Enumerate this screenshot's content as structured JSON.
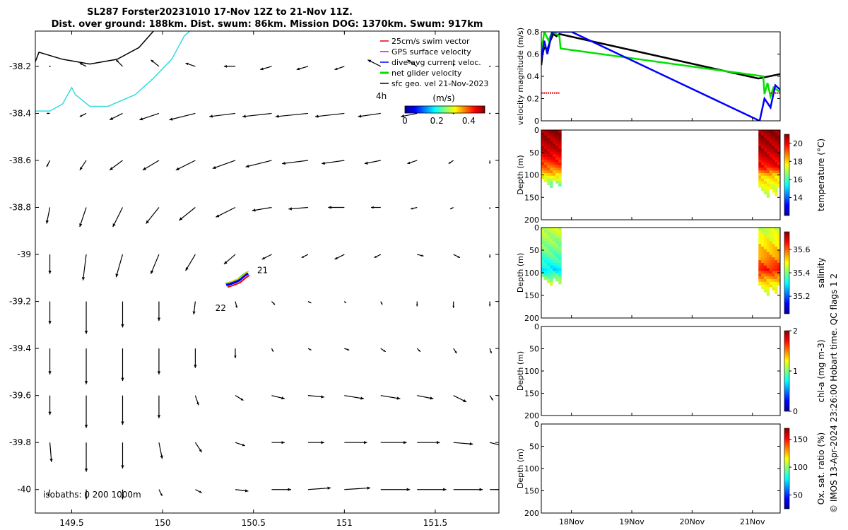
{
  "title": {
    "line1": "SL287 Forster20231010 17-Nov 12Z to 21-Nov 11Z.",
    "line2": "Dist. over ground: 188km. Dist. swum: 86km. Mission DOG: 1370km. Swum: 917km"
  },
  "credit": "© IMOS 13-Apr-2024 23:26:00 Hobart time. QC flags 1  2",
  "chart_data": [
    {
      "type": "vector-map",
      "xlim": [
        149.3,
        151.85
      ],
      "ylim": [
        -40.1,
        -38.05
      ],
      "x_ticks": [
        149.5,
        150,
        150.5,
        151,
        151.5
      ],
      "x_tick_labels": [
        "149.5",
        "150",
        "150.5",
        "151",
        "151.5"
      ],
      "y_ticks": [
        -38.2,
        -38.4,
        -38.6,
        -38.8,
        -39,
        -39.2,
        -39.4,
        -39.6,
        -39.8,
        -40
      ],
      "y_tick_labels": [
        "-38.2",
        "-38.4",
        "-38.6",
        "-38.8",
        "-39",
        "-39.2",
        "-39.4",
        "-39.6",
        "-39.8",
        "-40"
      ],
      "legend": {
        "position": "top-right",
        "items": [
          {
            "label": "25cm/s swim vector",
            "color": "#e00000"
          },
          {
            "label": "GPS surface velocity",
            "color": "#e000e0"
          },
          {
            "label": "dive-avg current veloc.",
            "color": "#0000ff"
          },
          {
            "label": "net glider velocity",
            "color": "#00e000"
          },
          {
            "label": "sfc geo. vel 21-Nov-2023",
            "color": "#000000"
          }
        ],
        "extra_label": "4h"
      },
      "colorbar": {
        "label": "(m/s)",
        "ticks": [
          "0",
          "0.2",
          "0.4"
        ],
        "range": [
          0,
          0.5
        ]
      },
      "isobath_label": "isobaths: 0   200  1000m",
      "track_labels": [
        {
          "text": "21",
          "lon": 150.52,
          "lat": -39.08
        },
        {
          "text": "22",
          "lon": 150.29,
          "lat": -39.24
        }
      ],
      "track": [
        [
          150.35,
          -39.13
        ],
        [
          150.39,
          -39.12
        ],
        [
          150.42,
          -39.11
        ],
        [
          150.45,
          -39.09
        ],
        [
          150.47,
          -39.08
        ]
      ],
      "coast_black": [
        [
          149.3,
          -38.18
        ],
        [
          149.32,
          -38.14
        ],
        [
          149.45,
          -38.17
        ],
        [
          149.6,
          -38.19
        ],
        [
          149.75,
          -38.17
        ],
        [
          149.87,
          -38.12
        ],
        [
          149.95,
          -38.05
        ]
      ],
      "isobath_200": [
        [
          149.3,
          -38.39
        ],
        [
          149.38,
          -38.39
        ],
        [
          149.45,
          -38.36
        ],
        [
          149.5,
          -38.29
        ],
        [
          149.52,
          -38.32
        ],
        [
          149.6,
          -38.37
        ],
        [
          149.7,
          -38.37
        ],
        [
          149.85,
          -38.32
        ],
        [
          149.95,
          -38.25
        ],
        [
          150.05,
          -38.17
        ],
        [
          150.12,
          -38.07
        ],
        [
          150.15,
          -38.05
        ]
      ],
      "vector_lons": [
        149.38,
        149.58,
        149.78,
        149.98,
        150.18,
        150.4,
        150.6,
        150.8,
        151.0,
        151.2,
        151.4,
        151.6,
        151.8
      ],
      "vector_lats": [
        -38.2,
        -38.4,
        -38.6,
        -38.8,
        -39.0,
        -39.2,
        -39.4,
        -39.6,
        -39.8,
        -40.0
      ],
      "vectors_u": [
        [
          0.0,
          -0.04,
          -0.04,
          -0.05,
          -0.06,
          -0.07,
          -0.07,
          -0.07,
          -0.06,
          -0.08,
          -0.06,
          0.0,
          0.0
        ],
        [
          -0.02,
          -0.04,
          -0.08,
          -0.12,
          -0.16,
          -0.16,
          -0.18,
          -0.2,
          -0.18,
          -0.14,
          -0.1,
          0.0,
          0.0
        ],
        [
          -0.02,
          -0.04,
          -0.08,
          -0.1,
          -0.12,
          -0.14,
          -0.16,
          -0.16,
          -0.14,
          -0.1,
          -0.06,
          -0.03,
          0.0
        ],
        [
          -0.02,
          -0.04,
          -0.06,
          -0.08,
          -0.1,
          -0.12,
          -0.12,
          -0.12,
          -0.1,
          -0.06,
          -0.04,
          -0.02,
          0.0
        ],
        [
          0.0,
          -0.02,
          -0.04,
          -0.05,
          -0.06,
          -0.07,
          -0.06,
          -0.04,
          -0.06,
          -0.04,
          0.04,
          0.04,
          0.0
        ],
        [
          0.0,
          0.0,
          0.0,
          0.0,
          -0.01,
          0.01,
          0.02,
          0.02,
          0.01,
          0.01,
          0.0,
          0.0,
          0.0
        ],
        [
          0.0,
          0.0,
          0.0,
          0.0,
          0.0,
          0.0,
          0.01,
          0.02,
          0.03,
          0.03,
          0.02,
          0.02,
          0.01
        ],
        [
          0.0,
          0.0,
          0.0,
          0.0,
          0.02,
          0.05,
          0.08,
          0.1,
          0.12,
          0.12,
          0.1,
          0.08,
          0.02
        ],
        [
          0.01,
          0.0,
          0.0,
          0.02,
          0.04,
          0.06,
          0.08,
          0.1,
          0.14,
          0.16,
          0.14,
          0.12,
          0.08
        ],
        [
          -0.01,
          0.0,
          0.0,
          0.02,
          0.04,
          0.08,
          0.12,
          0.14,
          0.16,
          0.18,
          0.18,
          0.18,
          0.14
        ]
      ],
      "vectors_v": [
        [
          0.0,
          0.02,
          0.04,
          0.04,
          0.02,
          0.0,
          -0.02,
          -0.02,
          -0.02,
          0.04,
          0.04,
          0.02,
          0.0
        ],
        [
          0.0,
          -0.02,
          -0.04,
          -0.04,
          -0.04,
          -0.02,
          -0.02,
          -0.02,
          -0.02,
          -0.02,
          -0.02,
          0.0,
          0.0
        ],
        [
          -0.04,
          -0.06,
          -0.06,
          -0.06,
          -0.06,
          -0.05,
          -0.04,
          -0.02,
          -0.02,
          -0.02,
          -0.02,
          -0.02,
          -0.02
        ],
        [
          -0.1,
          -0.12,
          -0.12,
          -0.1,
          -0.08,
          -0.06,
          -0.02,
          -0.01,
          0.0,
          0.0,
          -0.01,
          -0.01,
          -0.01
        ],
        [
          -0.12,
          -0.16,
          -0.14,
          -0.12,
          -0.1,
          -0.06,
          -0.03,
          -0.02,
          -0.03,
          -0.02,
          -0.01,
          -0.02,
          -0.02
        ],
        [
          -0.14,
          -0.2,
          -0.16,
          -0.12,
          -0.08,
          -0.04,
          -0.02,
          -0.01,
          -0.01,
          -0.02,
          -0.03,
          -0.04,
          -0.03
        ],
        [
          -0.16,
          -0.22,
          -0.2,
          -0.16,
          -0.12,
          -0.06,
          -0.02,
          -0.01,
          -0.01,
          -0.02,
          -0.02,
          -0.03,
          -0.03
        ],
        [
          -0.12,
          -0.2,
          -0.18,
          -0.14,
          -0.06,
          -0.03,
          -0.02,
          -0.01,
          -0.02,
          -0.02,
          -0.02,
          -0.04,
          -0.03
        ],
        [
          -0.12,
          -0.18,
          -0.16,
          -0.1,
          -0.06,
          -0.02,
          0.0,
          0.0,
          0.0,
          0.0,
          0.0,
          -0.01,
          -0.02
        ],
        [
          -0.04,
          -0.06,
          -0.06,
          -0.04,
          -0.02,
          -0.01,
          0.0,
          0.01,
          0.01,
          0.0,
          0.0,
          0.0,
          0.0
        ]
      ]
    },
    {
      "type": "line",
      "ylabel": "velocity magnitude (m/s)",
      "ylim": [
        0,
        0.8
      ],
      "y_ticks": [
        0,
        0.2,
        0.4,
        0.6,
        0.8
      ],
      "y_tick_labels": [
        "0",
        "0.2",
        "0.4",
        "0.6",
        "0.8"
      ],
      "xlim": [
        17.5,
        21.46
      ],
      "series": [
        {
          "color": "#000000",
          "x": [
            17.5,
            17.52,
            17.55,
            17.6,
            17.65,
            17.7,
            17.75,
            17.8,
            21.1,
            21.46
          ],
          "y": [
            0.5,
            0.6,
            0.66,
            0.64,
            0.72,
            0.78,
            0.76,
            0.78,
            0.38,
            0.42
          ]
        },
        {
          "color": "#00e000",
          "x": [
            17.5,
            17.55,
            17.62,
            17.68,
            17.75,
            17.8,
            17.82,
            21.18,
            21.2,
            21.25,
            21.3,
            21.35,
            21.4,
            21.46
          ],
          "y": [
            0.62,
            0.8,
            0.72,
            0.8,
            0.78,
            0.76,
            0.65,
            0.4,
            0.24,
            0.34,
            0.22,
            0.3,
            0.28,
            0.26
          ]
        },
        {
          "color": "#0000ff",
          "x": [
            17.5,
            17.55,
            17.6,
            17.68,
            17.75,
            18.0,
            21.12,
            21.2,
            21.3,
            21.38,
            21.46
          ],
          "y": [
            0.55,
            0.72,
            0.6,
            0.8,
            0.8,
            0.8,
            0.0,
            0.2,
            0.12,
            0.32,
            0.28
          ]
        },
        {
          "color": "#e00000",
          "x": [
            17.5,
            17.65,
            17.8
          ],
          "y": [
            0.25,
            0.25,
            0.25
          ]
        },
        {
          "color": "#e00000",
          "x": [
            21.3,
            21.38,
            21.46
          ],
          "y": [
            0.25,
            0.25,
            0.25
          ]
        }
      ]
    },
    {
      "type": "heatmap",
      "ylabel": "Depth (m)",
      "cbar_label": "temperature (°C)",
      "ylim": [
        200,
        0
      ],
      "y_ticks": [
        0,
        50,
        100,
        150,
        200
      ],
      "y_tick_labels": [
        "0",
        "50",
        "100",
        "150",
        "200"
      ],
      "clim": [
        12,
        21
      ],
      "cbar_ticks": [
        14,
        16,
        18,
        20
      ],
      "cbar_tick_labels": [
        "14",
        "16",
        "18",
        "20"
      ],
      "xlim": [
        17.5,
        21.46
      ],
      "blocks": [
        {
          "x0": 17.5,
          "x1": 17.83,
          "max_depth": 128,
          "profile": [
            [
              0,
              20.8
            ],
            [
              40,
              20.4
            ],
            [
              70,
              19.5
            ],
            [
              90,
              18.5
            ],
            [
              110,
              17
            ],
            [
              128,
              15.5
            ]
          ]
        },
        {
          "x0": 21.1,
          "x1": 21.46,
          "max_depth": 150,
          "profile": [
            [
              0,
              20.8
            ],
            [
              40,
              20.5
            ],
            [
              80,
              19.8
            ],
            [
              100,
              18
            ],
            [
              120,
              17.5
            ],
            [
              150,
              17
            ]
          ]
        }
      ]
    },
    {
      "type": "heatmap",
      "ylabel": "Depth (m)",
      "cbar_label": "salinity",
      "ylim": [
        200,
        0
      ],
      "y_ticks": [
        0,
        50,
        100,
        150,
        200
      ],
      "y_tick_labels": [
        "0",
        "50",
        "100",
        "150",
        "200"
      ],
      "clim": [
        35.05,
        35.75
      ],
      "cbar_ticks": [
        35.2,
        35.4,
        35.6
      ],
      "cbar_tick_labels": [
        "35.2",
        "35.4",
        "35.6"
      ],
      "xlim": [
        17.5,
        21.46
      ],
      "blocks": [
        {
          "x0": 17.5,
          "x1": 17.83,
          "max_depth": 128,
          "profile": [
            [
              0,
              35.45
            ],
            [
              40,
              35.4
            ],
            [
              70,
              35.35
            ],
            [
              90,
              35.3
            ],
            [
              110,
              35.4
            ],
            [
              128,
              35.45
            ]
          ]
        },
        {
          "x0": 21.1,
          "x1": 21.46,
          "max_depth": 150,
          "profile": [
            [
              0,
              35.45
            ],
            [
              30,
              35.5
            ],
            [
              60,
              35.55
            ],
            [
              90,
              35.65
            ],
            [
              120,
              35.5
            ],
            [
              150,
              35.45
            ]
          ]
        }
      ]
    },
    {
      "type": "heatmap",
      "ylabel": "Depth (m)",
      "cbar_label": "chl-a (mg m-3)",
      "ylim": [
        200,
        0
      ],
      "y_ticks": [
        0,
        50,
        100,
        150,
        200
      ],
      "y_tick_labels": [
        "0",
        "50",
        "100",
        "150",
        "200"
      ],
      "clim": [
        0,
        2
      ],
      "cbar_ticks": [
        0,
        1,
        2
      ],
      "cbar_tick_labels": [
        "0",
        "1",
        "2"
      ],
      "xlim": [
        17.5,
        21.46
      ],
      "blocks": []
    },
    {
      "type": "heatmap",
      "ylabel": "Depth (m)",
      "cbar_label": "Ox. sat. ratio (%)",
      "ylim": [
        200,
        0
      ],
      "y_ticks": [
        0,
        50,
        100,
        150,
        200
      ],
      "y_tick_labels": [
        "0",
        "50",
        "100",
        "150",
        "200"
      ],
      "clim": [
        25,
        170
      ],
      "cbar_ticks": [
        50,
        100,
        150
      ],
      "cbar_tick_labels": [
        "50",
        "100",
        "150"
      ],
      "xlim": [
        17.5,
        21.46
      ],
      "x_ticks": [
        18,
        19,
        20,
        21
      ],
      "x_tick_labels": [
        "18Nov",
        "19Nov",
        "20Nov",
        "21Nov"
      ],
      "blocks": []
    }
  ]
}
